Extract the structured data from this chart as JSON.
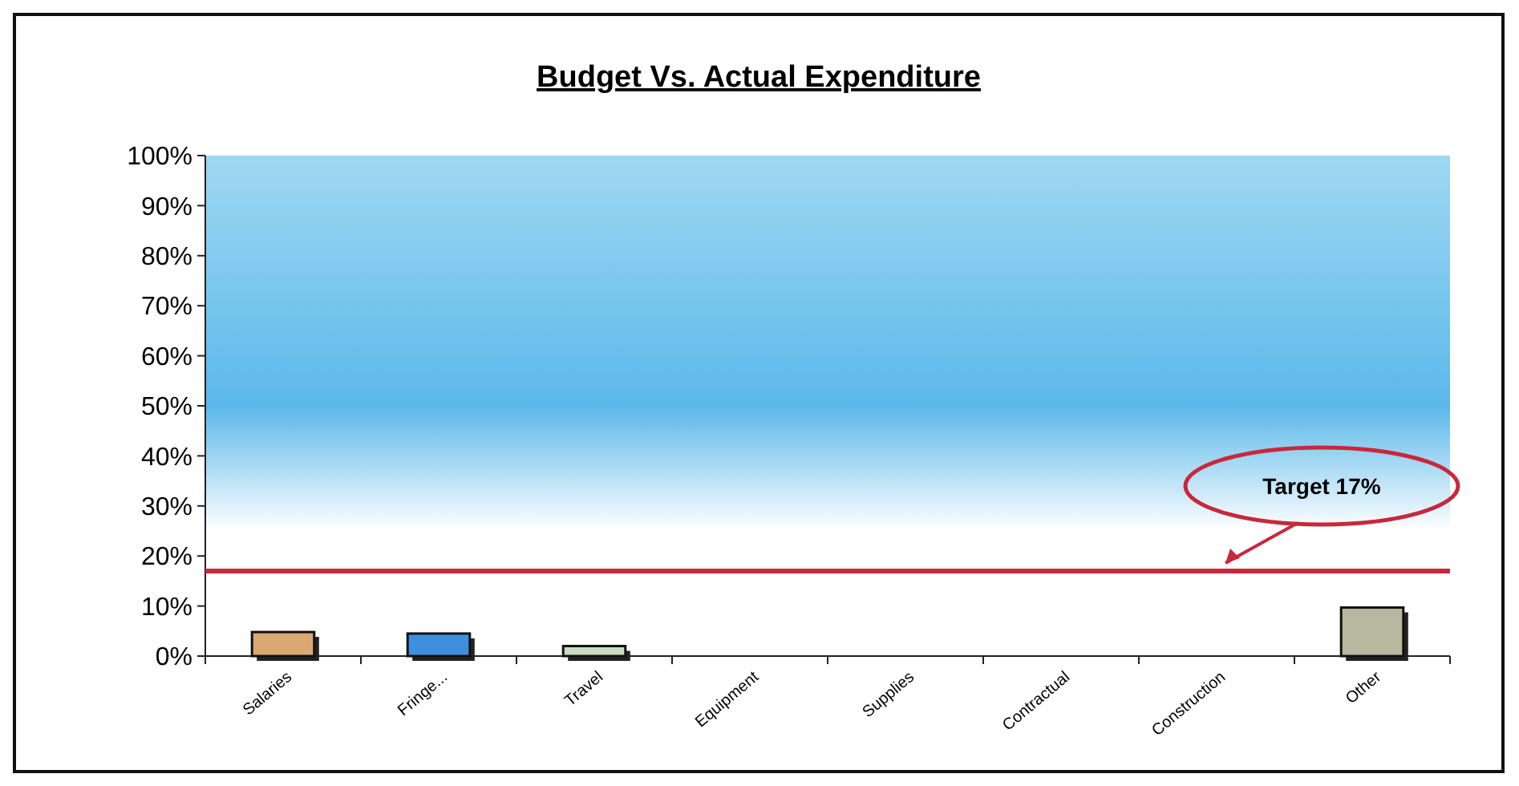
{
  "chart_data": {
    "type": "bar",
    "title": "Budget Vs. Actual Expenditure",
    "categories": [
      "Salaries",
      "Fringe...",
      "Travel",
      "Equipment",
      "Supplies",
      "Contractual",
      "Construction",
      "Other"
    ],
    "values": [
      4.8,
      4.5,
      2,
      0,
      0,
      0,
      0,
      9.7
    ],
    "colors": [
      "#d9a873",
      "#3f8fe0",
      "#c9dcc0",
      "#cccccc",
      "#cccccc",
      "#cccccc",
      "#cccccc",
      "#b8b8a0"
    ],
    "ylim": [
      0,
      100
    ],
    "yticks": [
      {
        "value": 0,
        "label": "0%"
      },
      {
        "value": 10,
        "label": "10%"
      },
      {
        "value": 20,
        "label": "20%"
      },
      {
        "value": 30,
        "label": "30%"
      },
      {
        "value": 40,
        "label": "40%"
      },
      {
        "value": 50,
        "label": "50%"
      },
      {
        "value": 60,
        "label": "60%"
      },
      {
        "value": 70,
        "label": "70%"
      },
      {
        "value": 80,
        "label": "80%"
      },
      {
        "value": 90,
        "label": "90%"
      },
      {
        "value": 100,
        "label": "100%"
      }
    ],
    "ref_lines": [
      {
        "axis": "y",
        "value": 17,
        "label": "Target 17%",
        "color": "#c8283c"
      }
    ]
  }
}
